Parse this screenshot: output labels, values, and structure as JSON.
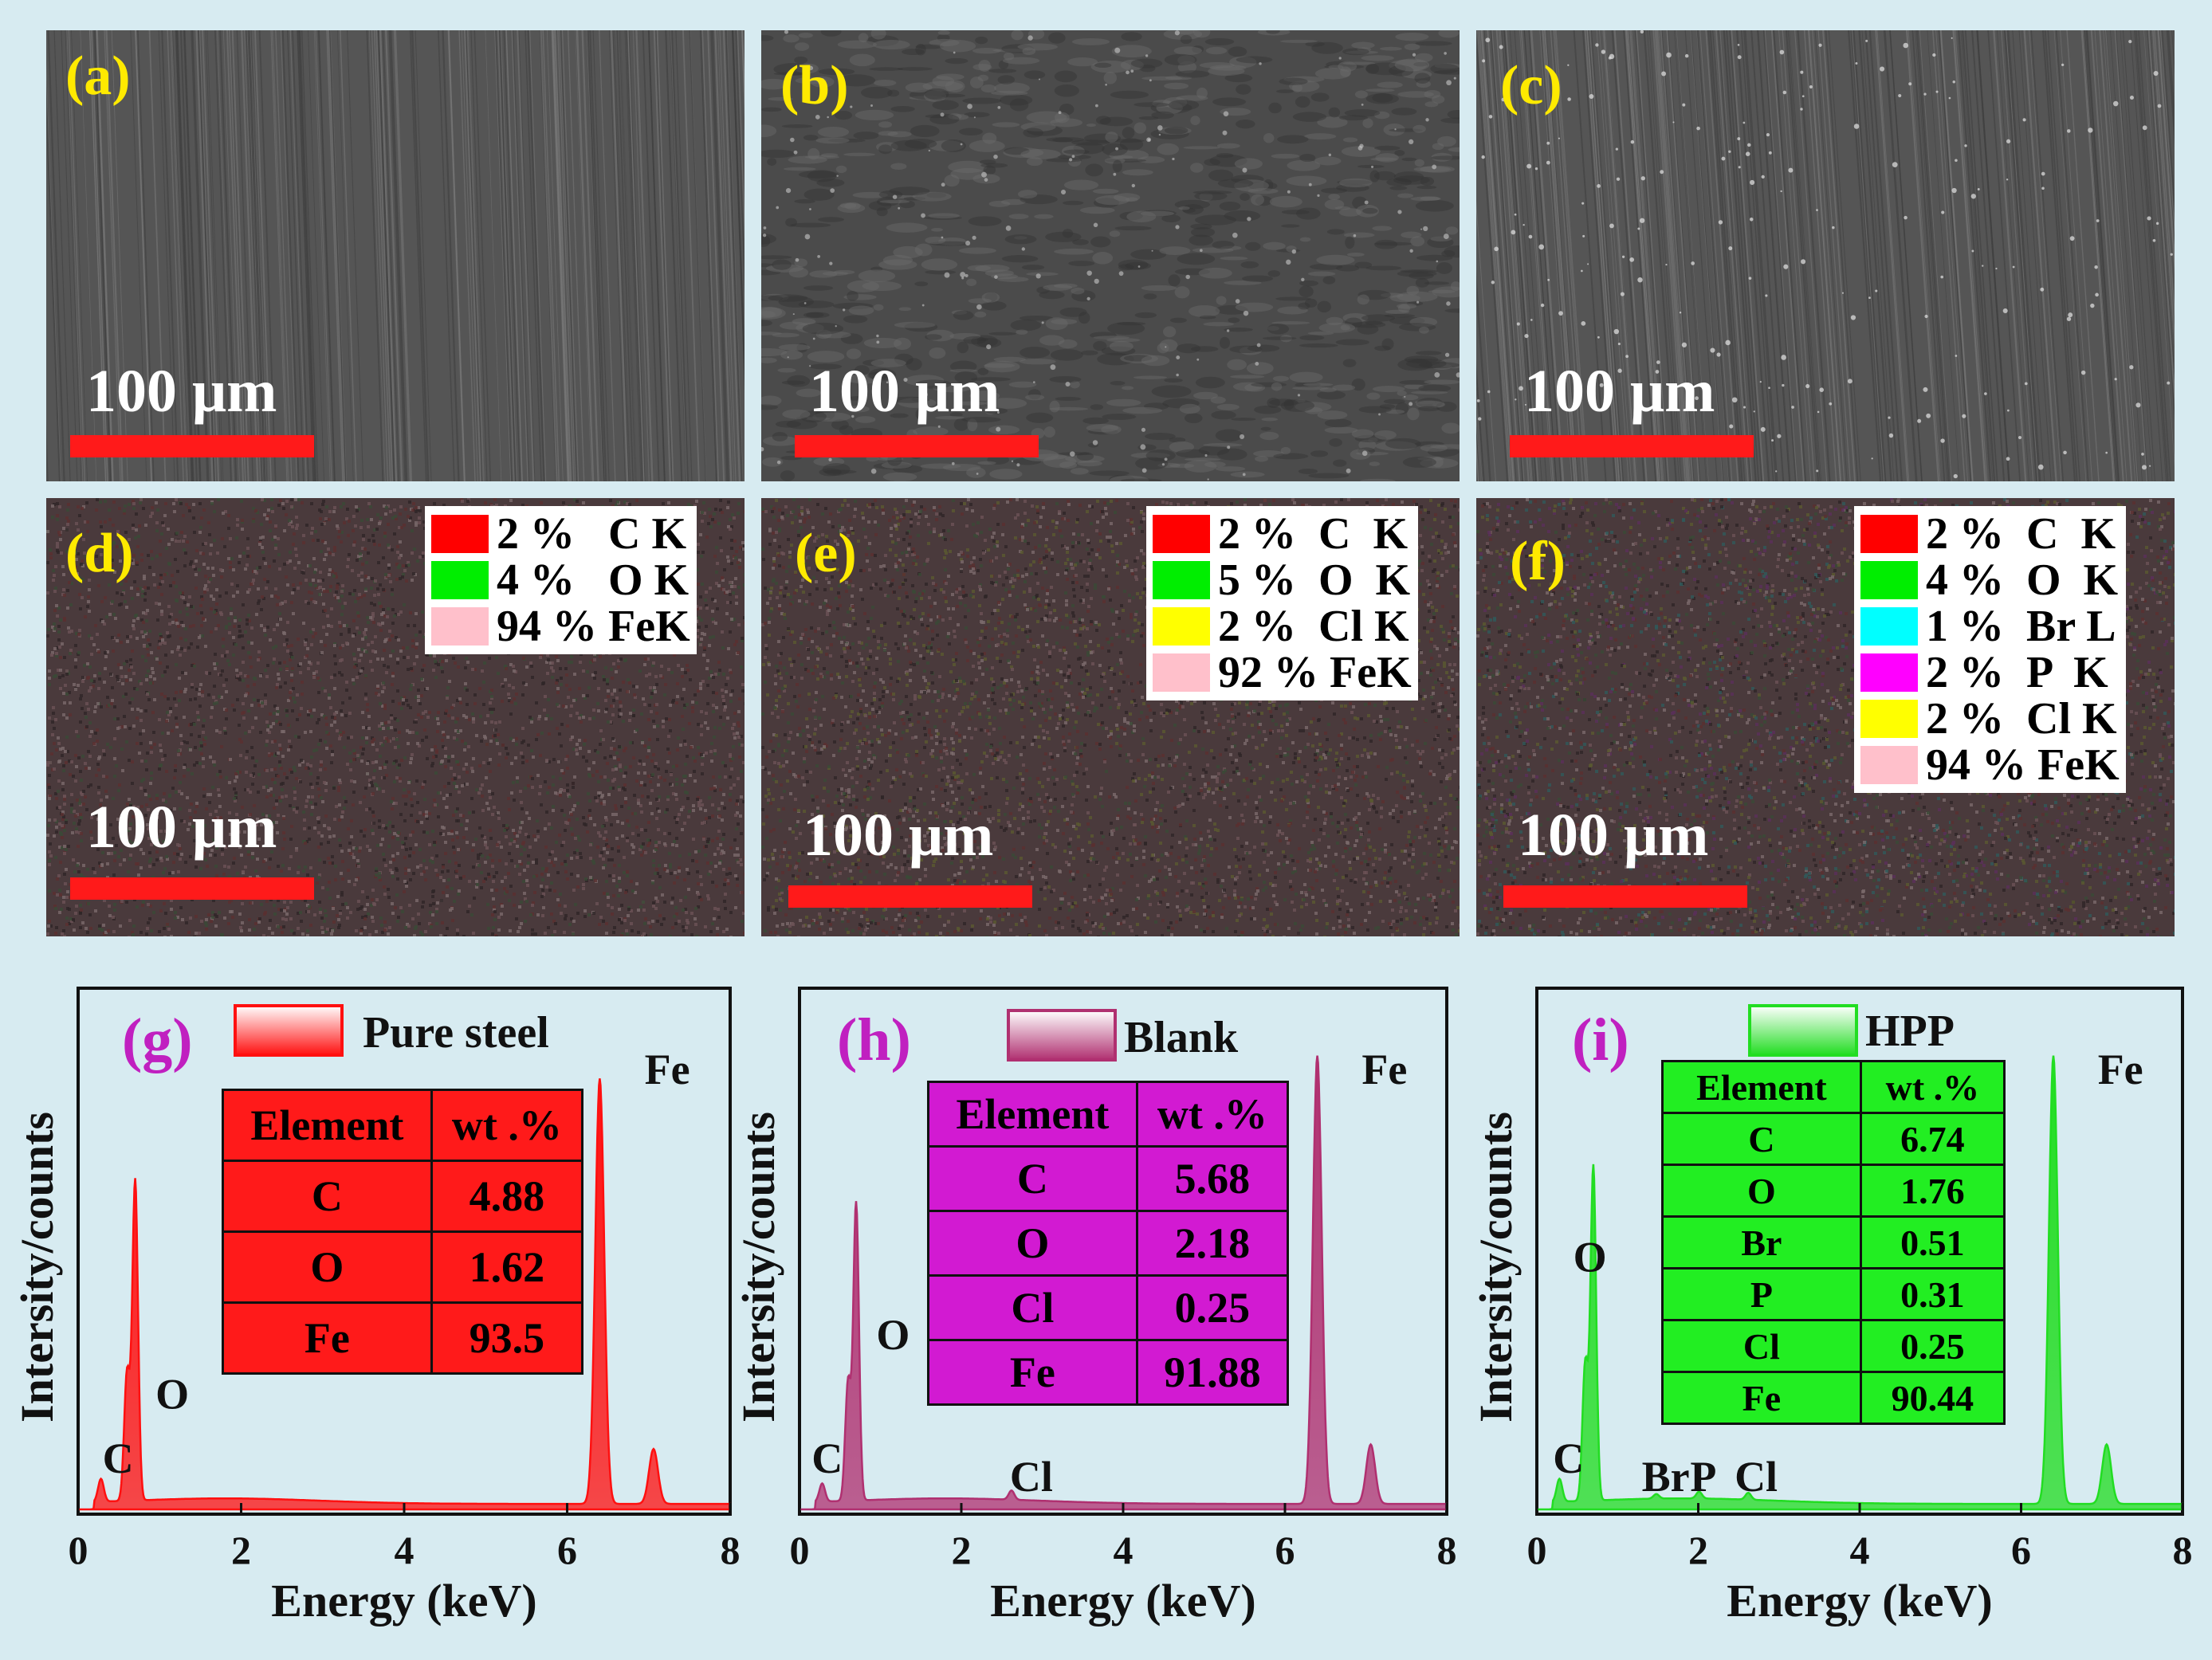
{
  "sem": [
    {
      "label": "(a)",
      "scale": "100 μm"
    },
    {
      "label": "(b)",
      "scale": "100 μm"
    },
    {
      "label": "(c)",
      "scale": "100 μm"
    }
  ],
  "maps": [
    {
      "label": "(d)",
      "scale": "100 μm",
      "legend": [
        {
          "text": "2 %   C K",
          "color": "#ff0000"
        },
        {
          "text": "4 %   O K",
          "color": "#00ee00"
        },
        {
          "text": "94 % FeK",
          "color": "#ffc0cb"
        }
      ]
    },
    {
      "label": "(e)",
      "scale": "100 μm",
      "legend": [
        {
          "text": "2 %  C  K",
          "color": "#ff0000"
        },
        {
          "text": "5 %  O  K",
          "color": "#00ee00"
        },
        {
          "text": "2 %  Cl K",
          "color": "#ffff00"
        },
        {
          "text": "92 % FeK",
          "color": "#ffc0cb"
        }
      ]
    },
    {
      "label": "(f)",
      "scale": "100 μm",
      "legend": [
        {
          "text": "2 %  C  K",
          "color": "#ff0000"
        },
        {
          "text": "4 %  O  K",
          "color": "#00ee00"
        },
        {
          "text": "1 %  Br L",
          "color": "#00ffff"
        },
        {
          "text": "2 %  P  K",
          "color": "#ff00ff"
        },
        {
          "text": "2 %  Cl K",
          "color": "#ffff00"
        },
        {
          "text": "94 % FeK",
          "color": "#ffc0cb"
        }
      ]
    }
  ],
  "chart_data": [
    {
      "type": "area",
      "panel": "(g)",
      "legend": "Pure steel",
      "color": "#ff1010",
      "xlabel": "Energy (keV)",
      "ylabel": "Intersity/counts",
      "xlim": [
        0,
        8
      ],
      "xticks": [
        0,
        2,
        4,
        6,
        8
      ],
      "peaks": [
        {
          "element": "C",
          "energy": 0.28,
          "height": 0.05
        },
        {
          "element": "O",
          "energy": 0.6,
          "height": 0.28
        },
        {
          "element": "O",
          "energy": 0.7,
          "height": 0.7
        },
        {
          "element": "Fe",
          "energy": 6.4,
          "height": 0.93
        },
        {
          "element": "Fe",
          "energy": 7.06,
          "height": 0.12
        }
      ],
      "peak_labels": [
        {
          "text": "C",
          "energy": 0.3
        },
        {
          "text": "O",
          "energy": 0.95
        },
        {
          "text": "Fe",
          "energy": 6.95
        }
      ],
      "table": {
        "headers": [
          "Element",
          "wt .%"
        ],
        "rows": [
          [
            "C",
            "4.88"
          ],
          [
            "O",
            "1.62"
          ],
          [
            "Fe",
            "93.5"
          ]
        ],
        "color": "#ff1a1a"
      }
    },
    {
      "type": "area",
      "panel": "(h)",
      "legend": "Blank",
      "color": "#b03070",
      "xlabel": "Energy (keV)",
      "ylabel": "Intersity/counts",
      "xlim": [
        0,
        8
      ],
      "xticks": [
        0,
        2,
        4,
        6,
        8
      ],
      "peaks": [
        {
          "element": "C",
          "energy": 0.28,
          "height": 0.04
        },
        {
          "element": "O",
          "energy": 0.6,
          "height": 0.26
        },
        {
          "element": "O",
          "energy": 0.7,
          "height": 0.65
        },
        {
          "element": "Cl",
          "energy": 2.62,
          "height": 0.02
        },
        {
          "element": "Fe",
          "energy": 6.4,
          "height": 0.98
        },
        {
          "element": "Fe",
          "energy": 7.06,
          "height": 0.13
        }
      ],
      "peak_labels": [
        {
          "text": "C",
          "energy": 0.15
        },
        {
          "text": "O",
          "energy": 0.95
        },
        {
          "text": "Cl",
          "energy": 2.6
        },
        {
          "text": "Fe",
          "energy": 6.95
        }
      ],
      "table": {
        "headers": [
          "Element",
          "wt .%"
        ],
        "rows": [
          [
            "C",
            "5.68"
          ],
          [
            "O",
            "2.18"
          ],
          [
            "Cl",
            "0.25"
          ],
          [
            "Fe",
            "91.88"
          ]
        ],
        "color": "#d21ad2"
      }
    },
    {
      "type": "area",
      "panel": "(i)",
      "legend": "HPP",
      "color": "#22dd22",
      "xlabel": "Energy (keV)",
      "ylabel": "Intersity/counts",
      "xlim": [
        0,
        8
      ],
      "xticks": [
        0,
        2,
        4,
        6,
        8
      ],
      "peaks": [
        {
          "element": "C",
          "energy": 0.28,
          "height": 0.05
        },
        {
          "element": "O",
          "energy": 0.6,
          "height": 0.3
        },
        {
          "element": "O",
          "energy": 0.7,
          "height": 0.73
        },
        {
          "element": "Br",
          "energy": 1.48,
          "height": 0.01
        },
        {
          "element": "P",
          "energy": 2.01,
          "height": 0.015
        },
        {
          "element": "Cl",
          "energy": 2.62,
          "height": 0.015
        },
        {
          "element": "Fe",
          "energy": 6.4,
          "height": 0.98
        },
        {
          "element": "Fe",
          "energy": 7.06,
          "height": 0.13
        }
      ],
      "peak_labels": [
        {
          "text": "C",
          "energy": 0.2
        },
        {
          "text": "O",
          "energy": 0.45
        },
        {
          "text": "Br",
          "energy": 1.3
        },
        {
          "text": "P",
          "energy": 1.9
        },
        {
          "text": "Cl",
          "energy": 2.45
        },
        {
          "text": "Fe",
          "energy": 6.95
        }
      ],
      "table": {
        "headers": [
          "Element",
          "wt .%"
        ],
        "rows": [
          [
            "C",
            "6.74"
          ],
          [
            "O",
            "1.76"
          ],
          [
            "Br",
            "0.51"
          ],
          [
            "P",
            "0.31"
          ],
          [
            "Cl",
            "0.25"
          ],
          [
            "Fe",
            "90.44"
          ]
        ],
        "color": "#22ee22"
      }
    }
  ]
}
